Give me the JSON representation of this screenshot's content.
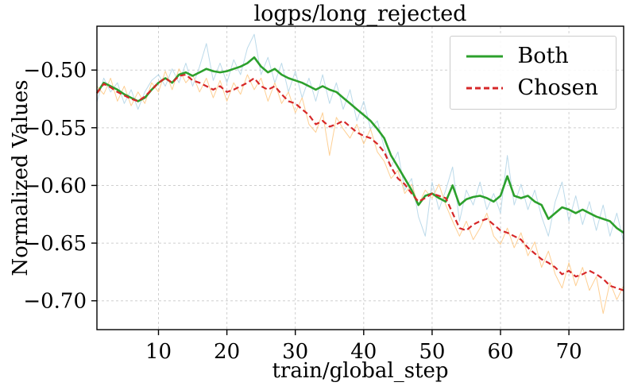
{
  "chart_data": {
    "type": "line",
    "title": "logps/long_rejected",
    "xlabel": "train/global_step",
    "ylabel": "Normalized Values",
    "xlim": [
      1,
      78
    ],
    "ylim": [
      -0.725,
      -0.462
    ],
    "xticks": [
      10,
      20,
      30,
      40,
      50,
      60,
      70
    ],
    "yticks": [
      -0.5,
      -0.55,
      -0.6,
      -0.65,
      -0.7
    ],
    "grid": true,
    "legend": {
      "position": "upper right"
    },
    "x": [
      1,
      2,
      3,
      4,
      5,
      6,
      7,
      8,
      9,
      10,
      11,
      12,
      13,
      14,
      15,
      16,
      17,
      18,
      19,
      20,
      21,
      22,
      23,
      24,
      25,
      26,
      27,
      28,
      29,
      30,
      31,
      32,
      33,
      34,
      35,
      36,
      37,
      38,
      39,
      40,
      41,
      42,
      43,
      44,
      45,
      46,
      47,
      48,
      49,
      50,
      51,
      52,
      53,
      54,
      55,
      56,
      57,
      58,
      59,
      60,
      61,
      62,
      63,
      64,
      65,
      66,
      67,
      68,
      69,
      70,
      71,
      72,
      73,
      74,
      75,
      76,
      77,
      78
    ],
    "series": [
      {
        "name": "Both",
        "color": "#2ca02c",
        "style": "solid",
        "dash": "none",
        "width": 2.6,
        "opacity": 1,
        "layer": 2,
        "in_legend": true,
        "values": [
          -0.52,
          -0.511,
          -0.514,
          -0.517,
          -0.521,
          -0.524,
          -0.527,
          -0.524,
          -0.517,
          -0.511,
          -0.507,
          -0.511,
          -0.504,
          -0.502,
          -0.505,
          -0.502,
          -0.499,
          -0.501,
          -0.502,
          -0.501,
          -0.499,
          -0.497,
          -0.494,
          -0.489,
          -0.497,
          -0.502,
          -0.499,
          -0.504,
          -0.507,
          -0.509,
          -0.511,
          -0.514,
          -0.517,
          -0.514,
          -0.517,
          -0.519,
          -0.524,
          -0.529,
          -0.534,
          -0.539,
          -0.544,
          -0.551,
          -0.559,
          -0.574,
          -0.584,
          -0.594,
          -0.604,
          -0.617,
          -0.609,
          -0.607,
          -0.611,
          -0.614,
          -0.6,
          -0.617,
          -0.612,
          -0.61,
          -0.609,
          -0.611,
          -0.614,
          -0.609,
          -0.592,
          -0.609,
          -0.611,
          -0.609,
          -0.614,
          -0.617,
          -0.629,
          -0.624,
          -0.619,
          -0.621,
          -0.624,
          -0.621,
          -0.624,
          -0.627,
          -0.629,
          -0.631,
          -0.637,
          -0.641
        ]
      },
      {
        "name": "Chosen",
        "color": "#d62728",
        "style": "dashed",
        "dash": "7 4",
        "width": 2.2,
        "opacity": 1,
        "layer": 3,
        "in_legend": true,
        "values": [
          -0.52,
          -0.512,
          -0.515,
          -0.519,
          -0.522,
          -0.525,
          -0.527,
          -0.523,
          -0.517,
          -0.511,
          -0.507,
          -0.511,
          -0.505,
          -0.504,
          -0.509,
          -0.511,
          -0.514,
          -0.517,
          -0.514,
          -0.519,
          -0.517,
          -0.514,
          -0.511,
          -0.507,
          -0.514,
          -0.517,
          -0.514,
          -0.521,
          -0.527,
          -0.529,
          -0.534,
          -0.539,
          -0.547,
          -0.544,
          -0.549,
          -0.547,
          -0.544,
          -0.549,
          -0.554,
          -0.557,
          -0.559,
          -0.564,
          -0.571,
          -0.584,
          -0.594,
          -0.599,
          -0.607,
          -0.614,
          -0.611,
          -0.607,
          -0.609,
          -0.611,
          -0.624,
          -0.637,
          -0.639,
          -0.634,
          -0.631,
          -0.629,
          -0.634,
          -0.639,
          -0.641,
          -0.644,
          -0.647,
          -0.654,
          -0.659,
          -0.664,
          -0.667,
          -0.671,
          -0.677,
          -0.674,
          -0.679,
          -0.677,
          -0.674,
          -0.677,
          -0.681,
          -0.687,
          -0.689,
          -0.691
        ]
      },
      {
        "name": "Both (raw)",
        "color": "#a6cee3",
        "style": "solid",
        "dash": "none",
        "width": 1,
        "opacity": 0.75,
        "layer": 0,
        "in_legend": false,
        "values": [
          -0.528,
          -0.507,
          -0.519,
          -0.511,
          -0.529,
          -0.517,
          -0.534,
          -0.519,
          -0.509,
          -0.504,
          -0.514,
          -0.499,
          -0.511,
          -0.494,
          -0.514,
          -0.497,
          -0.477,
          -0.509,
          -0.494,
          -0.511,
          -0.491,
          -0.504,
          -0.481,
          -0.469,
          -0.504,
          -0.489,
          -0.511,
          -0.494,
          -0.519,
          -0.501,
          -0.524,
          -0.507,
          -0.527,
          -0.504,
          -0.529,
          -0.511,
          -0.534,
          -0.517,
          -0.544,
          -0.527,
          -0.551,
          -0.544,
          -0.567,
          -0.584,
          -0.571,
          -0.604,
          -0.594,
          -0.627,
          -0.644,
          -0.597,
          -0.621,
          -0.604,
          -0.584,
          -0.631,
          -0.604,
          -0.617,
          -0.597,
          -0.621,
          -0.607,
          -0.624,
          -0.574,
          -0.617,
          -0.599,
          -0.621,
          -0.604,
          -0.627,
          -0.644,
          -0.614,
          -0.597,
          -0.631,
          -0.609,
          -0.634,
          -0.614,
          -0.639,
          -0.617,
          -0.644,
          -0.624,
          -0.649
        ]
      },
      {
        "name": "Chosen (raw)",
        "color": "#fdbf6f",
        "style": "solid",
        "dash": "none",
        "width": 1,
        "opacity": 0.75,
        "layer": 1,
        "in_legend": false,
        "values": [
          -0.514,
          -0.521,
          -0.507,
          -0.527,
          -0.514,
          -0.531,
          -0.519,
          -0.529,
          -0.511,
          -0.519,
          -0.501,
          -0.517,
          -0.499,
          -0.511,
          -0.504,
          -0.519,
          -0.507,
          -0.524,
          -0.509,
          -0.527,
          -0.511,
          -0.521,
          -0.504,
          -0.517,
          -0.507,
          -0.527,
          -0.511,
          -0.529,
          -0.519,
          -0.537,
          -0.524,
          -0.547,
          -0.554,
          -0.537,
          -0.574,
          -0.541,
          -0.551,
          -0.559,
          -0.547,
          -0.564,
          -0.551,
          -0.571,
          -0.579,
          -0.594,
          -0.587,
          -0.607,
          -0.599,
          -0.617,
          -0.604,
          -0.611,
          -0.599,
          -0.617,
          -0.631,
          -0.644,
          -0.631,
          -0.647,
          -0.637,
          -0.624,
          -0.644,
          -0.651,
          -0.637,
          -0.654,
          -0.641,
          -0.661,
          -0.649,
          -0.671,
          -0.657,
          -0.677,
          -0.689,
          -0.667,
          -0.687,
          -0.671,
          -0.691,
          -0.679,
          -0.711,
          -0.684,
          -0.699,
          -0.687
        ]
      }
    ],
    "grid_color": "#cfcfcf",
    "spine_color": "#000000",
    "background_color": "#ffffff"
  }
}
